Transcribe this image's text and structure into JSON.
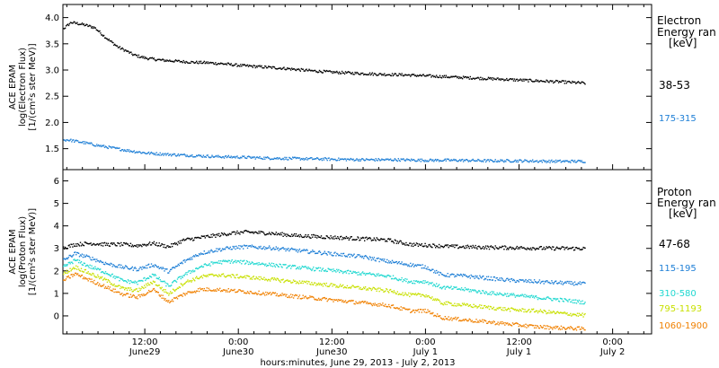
{
  "chart_data": [
    {
      "type": "scatter",
      "ylabel_lines": [
        "ACE EPAM",
        "log(Electron Flux)",
        "[1/(cm²s ster MeV)]"
      ],
      "ylim": [
        1.1,
        4.25
      ],
      "yticks": [
        "1.5",
        "2.0",
        "2.5",
        "3.0",
        "3.5",
        "4.0"
      ],
      "ytick_values": [
        1.5,
        2.0,
        2.5,
        3.0,
        3.5,
        4.0
      ],
      "legend_title_lines": [
        "Electron",
        "Energy ran",
        "[keV]"
      ],
      "series": [
        {
          "name": "38-53",
          "color": "#000000",
          "points": [
            [
              0,
              3.72
            ],
            [
              1.5,
              3.8
            ],
            [
              2.5,
              3.92
            ],
            [
              4,
              3.88
            ],
            [
              5.5,
              3.82
            ],
            [
              7,
              3.62
            ],
            [
              8.5,
              3.45
            ],
            [
              9.5,
              3.38
            ],
            [
              10.5,
              3.3
            ],
            [
              12,
              3.24
            ],
            [
              14,
              3.2
            ],
            [
              16,
              3.18
            ],
            [
              18,
              3.16
            ],
            [
              20,
              3.15
            ],
            [
              22,
              3.13
            ],
            [
              24,
              3.1
            ],
            [
              27,
              3.07
            ],
            [
              30,
              3.04
            ],
            [
              33,
              3.0
            ],
            [
              36,
              2.97
            ],
            [
              39,
              2.95
            ],
            [
              42,
              2.93
            ],
            [
              45,
              2.92
            ],
            [
              48,
              2.9
            ],
            [
              51,
              2.88
            ],
            [
              54,
              2.86
            ],
            [
              57,
              2.84
            ],
            [
              60,
              2.82
            ],
            [
              63,
              2.8
            ],
            [
              66,
              2.78
            ],
            [
              68.5,
              2.76
            ]
          ]
        },
        {
          "name": "175-315",
          "color": "#1e7fd6",
          "points": [
            [
              0,
              1.65
            ],
            [
              2,
              1.68
            ],
            [
              4,
              1.63
            ],
            [
              6,
              1.57
            ],
            [
              8,
              1.52
            ],
            [
              10,
              1.47
            ],
            [
              12,
              1.43
            ],
            [
              15,
              1.4
            ],
            [
              18,
              1.38
            ],
            [
              21,
              1.36
            ],
            [
              24,
              1.35
            ],
            [
              28,
              1.33
            ],
            [
              32,
              1.32
            ],
            [
              36,
              1.31
            ],
            [
              40,
              1.3
            ],
            [
              44,
              1.3
            ],
            [
              48,
              1.29
            ],
            [
              52,
              1.29
            ],
            [
              56,
              1.28
            ],
            [
              60,
              1.28
            ],
            [
              64,
              1.27
            ],
            [
              68.5,
              1.27
            ]
          ]
        }
      ]
    },
    {
      "type": "scatter",
      "ylabel_lines": [
        "ACE EPAM",
        "log(Proton Flux)",
        "[1/(cm²s ster MeV)]"
      ],
      "ylim": [
        -0.8,
        6.5
      ],
      "yticks": [
        "0",
        "1",
        "2",
        "3",
        "4",
        "5",
        "6"
      ],
      "ytick_values": [
        0,
        1,
        2,
        3,
        4,
        5,
        6
      ],
      "xticks": [
        "12:00",
        "0:00",
        "12:00",
        "0:00",
        "12:00",
        "0:00"
      ],
      "xtick_sublabels": [
        "June29",
        "June30",
        "June30",
        "July 1",
        "July 1",
        "July 2"
      ],
      "xtick_hours": [
        12,
        24,
        36,
        48,
        60,
        72
      ],
      "xlim_hours": [
        1.5,
        77
      ],
      "xlabel": "hours:minutes, June 29, 2013 - July  2, 2013",
      "legend_title_lines": [
        "Proton",
        "Energy ran",
        "[keV]"
      ],
      "series": [
        {
          "name": "47-68",
          "color": "#000000",
          "points": [
            [
              1.5,
              3.05
            ],
            [
              3,
              3.2
            ],
            [
              5,
              3.25
            ],
            [
              7,
              3.2
            ],
            [
              9,
              3.2
            ],
            [
              11,
              3.15
            ],
            [
              13,
              3.25
            ],
            [
              15,
              3.1
            ],
            [
              17,
              3.4
            ],
            [
              19,
              3.5
            ],
            [
              21,
              3.6
            ],
            [
              23,
              3.7
            ],
            [
              25,
              3.75
            ],
            [
              28,
              3.7
            ],
            [
              31,
              3.6
            ],
            [
              34,
              3.55
            ],
            [
              37,
              3.5
            ],
            [
              40,
              3.45
            ],
            [
              43,
              3.4
            ],
            [
              46,
              3.2
            ],
            [
              49,
              3.15
            ],
            [
              52,
              3.1
            ],
            [
              56,
              3.07
            ],
            [
              60,
              3.05
            ],
            [
              64,
              3.03
            ],
            [
              68.5,
              3.02
            ]
          ]
        },
        {
          "name": "115-195",
          "color": "#1e7fd6",
          "points": [
            [
              1.5,
              2.5
            ],
            [
              3,
              2.8
            ],
            [
              5,
              2.6
            ],
            [
              7,
              2.35
            ],
            [
              9,
              2.2
            ],
            [
              11,
              2.1
            ],
            [
              13,
              2.3
            ],
            [
              15,
              2.0
            ],
            [
              17,
              2.45
            ],
            [
              19,
              2.8
            ],
            [
              21,
              2.95
            ],
            [
              23,
              3.05
            ],
            [
              25,
              3.1
            ],
            [
              28,
              3.05
            ],
            [
              31,
              2.95
            ],
            [
              34,
              2.85
            ],
            [
              37,
              2.75
            ],
            [
              40,
              2.65
            ],
            [
              43,
              2.45
            ],
            [
              46,
              2.3
            ],
            [
              48,
              2.2
            ],
            [
              50,
              1.85
            ],
            [
              53,
              1.8
            ],
            [
              56,
              1.7
            ],
            [
              59,
              1.6
            ],
            [
              62,
              1.55
            ],
            [
              65,
              1.5
            ],
            [
              68.5,
              1.45
            ]
          ]
        },
        {
          "name": "310-580",
          "color": "#20d8d0",
          "points": [
            [
              1.5,
              2.2
            ],
            [
              3,
              2.5
            ],
            [
              5,
              2.2
            ],
            [
              7,
              1.95
            ],
            [
              9,
              1.6
            ],
            [
              11,
              1.5
            ],
            [
              13,
              1.85
            ],
            [
              15,
              1.35
            ],
            [
              17,
              1.85
            ],
            [
              19,
              2.2
            ],
            [
              21,
              2.4
            ],
            [
              23,
              2.45
            ],
            [
              25,
              2.4
            ],
            [
              28,
              2.3
            ],
            [
              31,
              2.2
            ],
            [
              34,
              2.1
            ],
            [
              37,
              2.0
            ],
            [
              40,
              1.9
            ],
            [
              43,
              1.8
            ],
            [
              46,
              1.55
            ],
            [
              48,
              1.55
            ],
            [
              50,
              1.3
            ],
            [
              53,
              1.2
            ],
            [
              56,
              1.05
            ],
            [
              59,
              0.95
            ],
            [
              62,
              0.85
            ],
            [
              65,
              0.75
            ],
            [
              68.5,
              0.62
            ]
          ]
        },
        {
          "name": "795-1193",
          "color": "#c8e000",
          "points": [
            [
              1.5,
              1.9
            ],
            [
              3,
              2.2
            ],
            [
              5,
              1.9
            ],
            [
              7,
              1.6
            ],
            [
              9,
              1.25
            ],
            [
              11,
              1.15
            ],
            [
              13,
              1.55
            ],
            [
              15,
              1.0
            ],
            [
              17,
              1.5
            ],
            [
              19,
              1.75
            ],
            [
              21,
              1.85
            ],
            [
              23,
              1.8
            ],
            [
              25,
              1.75
            ],
            [
              28,
              1.65
            ],
            [
              31,
              1.55
            ],
            [
              34,
              1.45
            ],
            [
              37,
              1.35
            ],
            [
              40,
              1.25
            ],
            [
              43,
              1.15
            ],
            [
              46,
              0.95
            ],
            [
              48,
              0.95
            ],
            [
              50,
              0.6
            ],
            [
              53,
              0.5
            ],
            [
              56,
              0.4
            ],
            [
              59,
              0.3
            ],
            [
              62,
              0.25
            ],
            [
              65,
              0.15
            ],
            [
              68.5,
              0.05
            ]
          ]
        },
        {
          "name": "1060-1900",
          "color": "#f08000",
          "points": [
            [
              1.5,
              1.6
            ],
            [
              3,
              1.9
            ],
            [
              5,
              1.6
            ],
            [
              7,
              1.3
            ],
            [
              9,
              1.0
            ],
            [
              11,
              0.85
            ],
            [
              13,
              1.2
            ],
            [
              15,
              0.65
            ],
            [
              17,
              1.0
            ],
            [
              19,
              1.2
            ],
            [
              21,
              1.2
            ],
            [
              23,
              1.15
            ],
            [
              25,
              1.1
            ],
            [
              28,
              1.0
            ],
            [
              31,
              0.9
            ],
            [
              34,
              0.8
            ],
            [
              37,
              0.7
            ],
            [
              40,
              0.6
            ],
            [
              43,
              0.5
            ],
            [
              46,
              0.25
            ],
            [
              48,
              0.25
            ],
            [
              50,
              -0.05
            ],
            [
              53,
              -0.15
            ],
            [
              56,
              -0.25
            ],
            [
              59,
              -0.35
            ],
            [
              62,
              -0.45
            ],
            [
              65,
              -0.5
            ],
            [
              68.5,
              -0.55
            ]
          ]
        }
      ]
    }
  ]
}
